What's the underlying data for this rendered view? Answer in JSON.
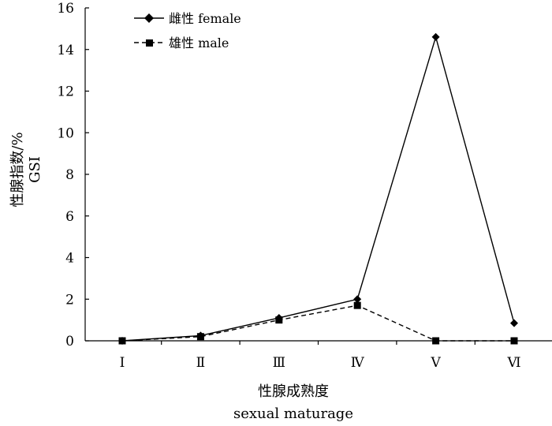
{
  "chart_data": {
    "type": "line",
    "categories": [
      "Ⅰ",
      "Ⅱ",
      "Ⅲ",
      "Ⅳ",
      "Ⅴ",
      "Ⅵ"
    ],
    "xlabel": "性腺成熟度",
    "xlabel_en": "sexual maturage",
    "ylabel": "性腺指数/%",
    "ylabel_en": "GSI",
    "ylim": [
      0,
      16
    ],
    "yticks": [
      0,
      2,
      4,
      6,
      8,
      10,
      12,
      14,
      16
    ],
    "grid": false,
    "legend_position": "top-left",
    "series": [
      {
        "name": "雌性 female",
        "values": [
          0.0,
          0.25,
          1.1,
          2.0,
          14.6,
          0.85
        ],
        "marker": "diamond",
        "line_style": "solid",
        "color": "#000000"
      },
      {
        "name": "雄性 male",
        "values": [
          0.0,
          0.2,
          1.0,
          1.7,
          0.0,
          0.0
        ],
        "marker": "square",
        "line_style": "dashed",
        "color": "#000000"
      }
    ]
  }
}
